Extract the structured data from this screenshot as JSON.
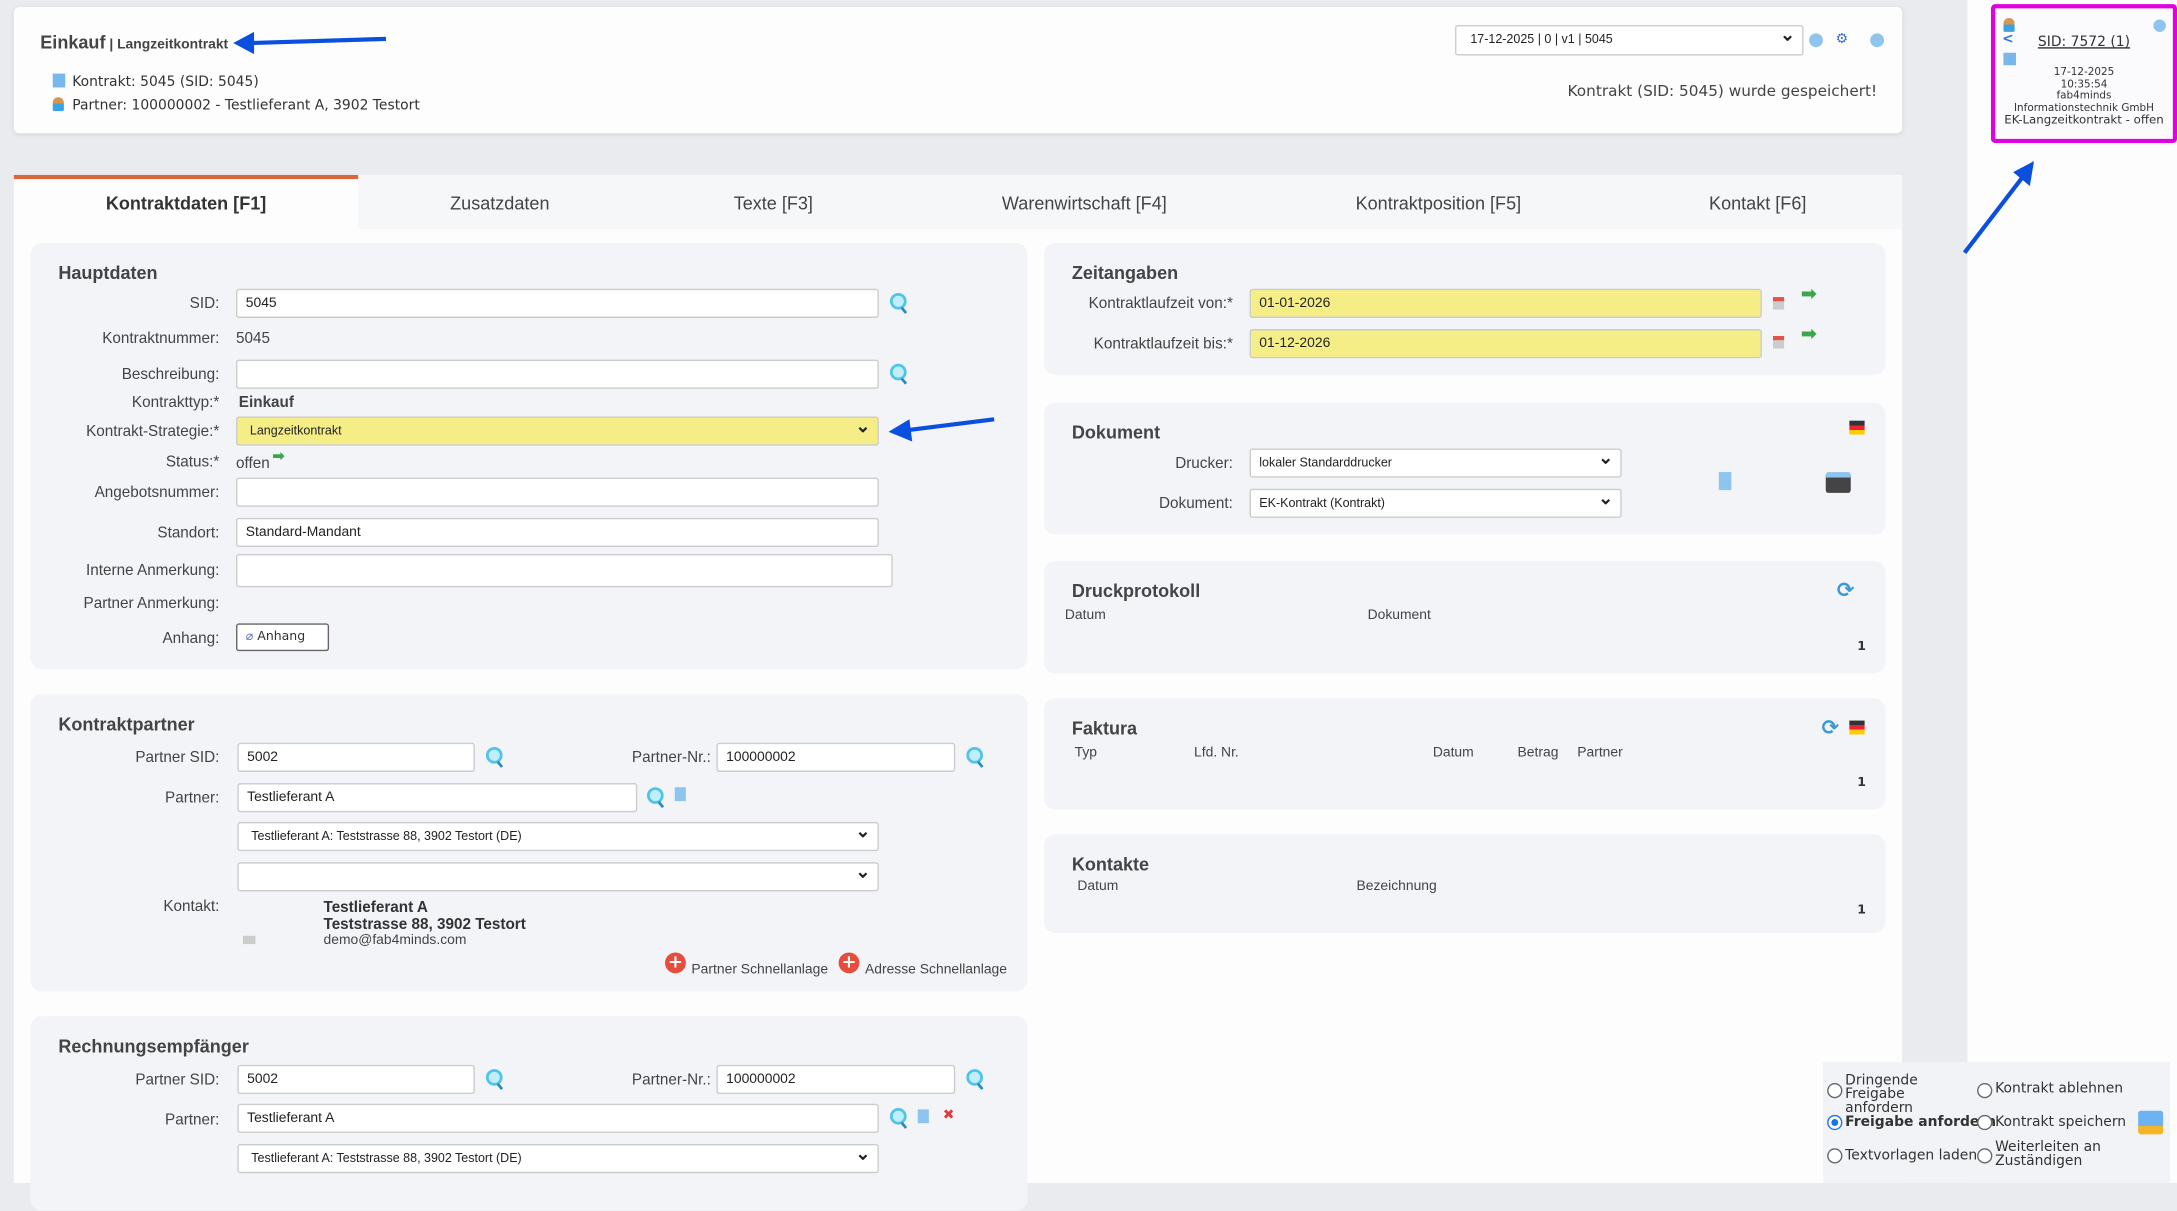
{
  "header": {
    "title": "Einkauf",
    "subtitle": "Langzeitkontrakt",
    "contract_line": "Kontrakt: 5045 (SID: 5045)",
    "partner_line": "Partner: 100000002 - Testlieferant A, 3902 Testort",
    "version_select": "17-12-2025 | 0 | v1 | 5045",
    "save_message": "Kontrakt (SID: 5045) wurde gespeichert!"
  },
  "side_card": {
    "sid_link": "SID: 7572 (1)",
    "date": "17-12-2025",
    "time": "10:35:54",
    "company_line1": "fab4minds",
    "company_line2": "Informationstechnik GmbH",
    "status": "EK-Langzeitkontrakt - offen",
    "border_color": "#e000e0"
  },
  "tabs": [
    {
      "label": "Kontraktdaten [F1]",
      "active": true
    },
    {
      "label": "Zusatzdaten"
    },
    {
      "label": "Texte [F3]"
    },
    {
      "label": "Warenwirtschaft [F4]"
    },
    {
      "label": "Kontraktposition [F5]"
    },
    {
      "label": "Kontakt [F6]"
    }
  ],
  "hauptdaten": {
    "title": "Hauptdaten",
    "sid_label": "SID:",
    "sid": "5045",
    "kontraktnummer_label": "Kontraktnummer:",
    "kontraktnummer": "5045",
    "beschreibung_label": "Beschreibung:",
    "beschreibung": "",
    "kontrakttyp_label": "Kontrakttyp:*",
    "kontrakttyp": "Einkauf",
    "strategie_label": "Kontrakt-Strategie:*",
    "strategie": "Langzeitkontrakt",
    "status_label": "Status:*",
    "status": "offen",
    "angebotsnummer_label": "Angebotsnummer:",
    "angebotsnummer": "",
    "standort_label": "Standort:",
    "standort": "Standard-Mandant",
    "interne_label": "Interne Anmerkung:",
    "interne": "",
    "partner_anm_label": "Partner Anmerkung:",
    "anhang_label": "Anhang:",
    "anhang_button": "Anhang"
  },
  "kontraktpartner": {
    "title": "Kontraktpartner",
    "partner_sid_label": "Partner SID:",
    "partner_sid": "5002",
    "partner_nr_label": "Partner-Nr.:",
    "partner_nr": "100000002",
    "partner_label": "Partner:",
    "partner": "Testlieferant A",
    "address_select": "Testlieferant A: Teststrasse 88, 3902 Testort (DE)",
    "contact_select": "",
    "kontakt_label": "Kontakt:",
    "kontakt_name": "Testlieferant A",
    "kontakt_address": "Teststrasse 88, 3902 Testort",
    "kontakt_email": "demo@fab4minds.com",
    "partner_quick": "Partner Schnellanlage",
    "address_quick": "Adresse Schnellanlage"
  },
  "rechnungsempfaenger": {
    "title": "Rechnungsempfänger",
    "partner_sid_label": "Partner SID:",
    "partner_sid": "5002",
    "partner_nr_label": "Partner-Nr.:",
    "partner_nr": "100000002",
    "partner_label": "Partner:",
    "partner": "Testlieferant A",
    "address_select": "Testlieferant A: Teststrasse 88, 3902 Testort (DE)"
  },
  "zeitangaben": {
    "title": "Zeitangaben",
    "von_label": "Kontraktlaufzeit von:*",
    "von": "01-01-2026",
    "bis_label": "Kontraktlaufzeit bis:*",
    "bis": "01-12-2026"
  },
  "dokument": {
    "title": "Dokument",
    "drucker_label": "Drucker:",
    "drucker": "lokaler Standarddrucker",
    "dokument_label": "Dokument:",
    "dokument": "EK-Kontrakt (Kontrakt)"
  },
  "druckprotokoll": {
    "title": "Druckprotokoll",
    "columns": [
      "Datum",
      "Dokument"
    ],
    "count": "1"
  },
  "faktura": {
    "title": "Faktura",
    "columns": [
      "Typ",
      "Lfd. Nr.",
      "Datum",
      "Betrag",
      "Partner"
    ],
    "count": "1"
  },
  "kontakte": {
    "title": "Kontakte",
    "columns": [
      "Datum",
      "Bezeichnung"
    ],
    "count": "1"
  },
  "actions": {
    "options": [
      {
        "label": "Dringende Freigabe anfordern",
        "checked": false
      },
      {
        "label": "Kontrakt ablehnen",
        "checked": false
      },
      {
        "label": "Freigabe anfordern",
        "checked": true
      },
      {
        "label": "Kontrakt speichern",
        "checked": false
      },
      {
        "label": "Textvorlagen laden",
        "checked": false
      },
      {
        "label": "Weiterleiten an Zuständigen",
        "checked": false
      }
    ]
  },
  "colors": {
    "accent": "#d9663a",
    "highlight": "#f5ee87",
    "annotation_arrow": "#0a4fe0"
  }
}
